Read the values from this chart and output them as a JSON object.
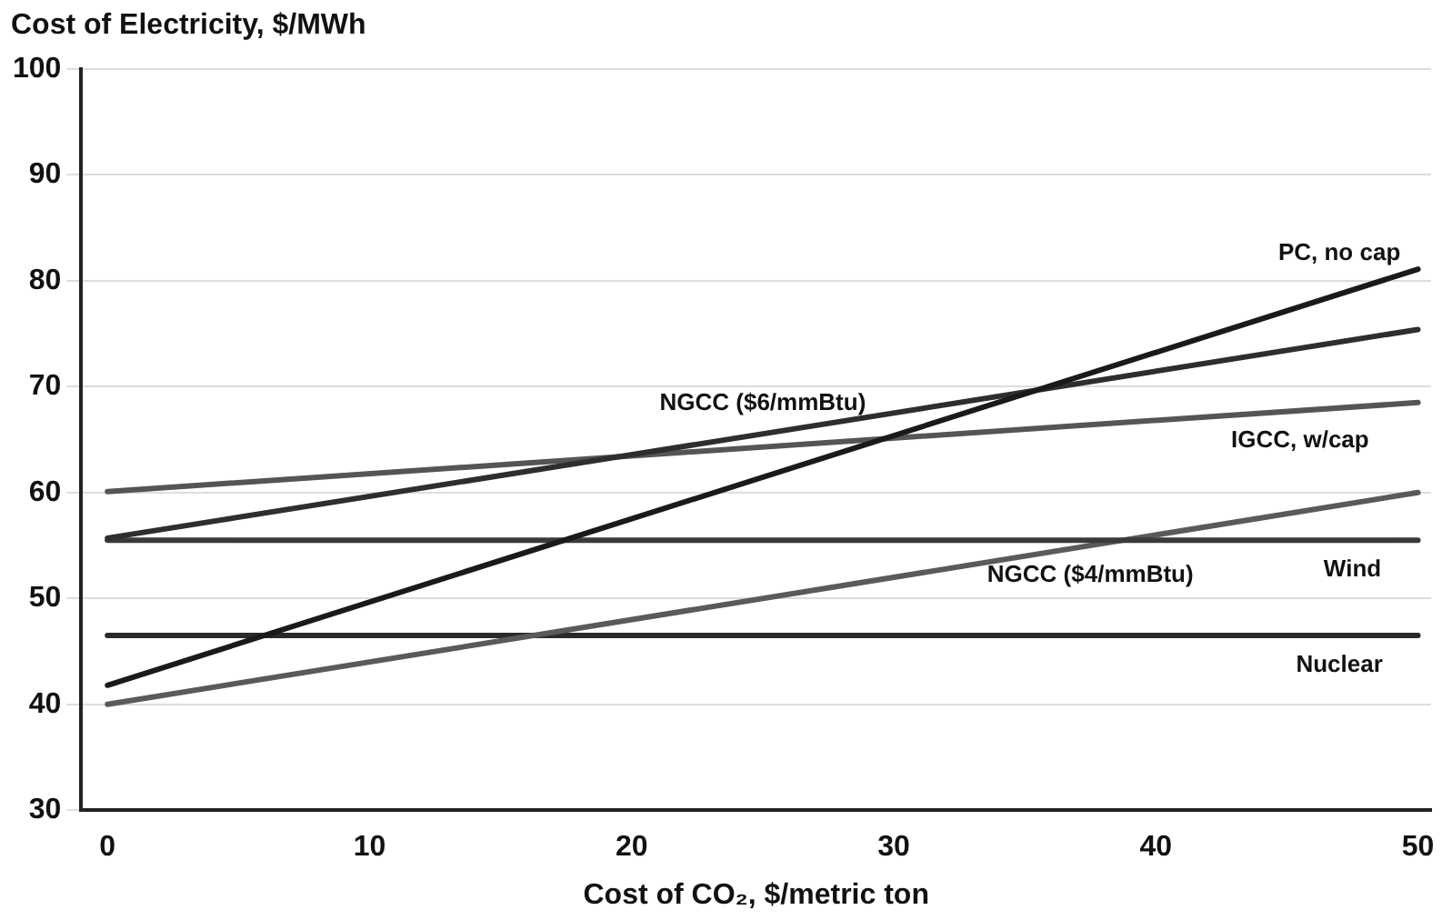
{
  "chart_data": {
    "type": "line",
    "ylabel": "Cost of Electricity, $/MWh",
    "xlabel": "Cost of CO₂, $/metric ton",
    "x": [
      0,
      50
    ],
    "xlim": [
      -1,
      50.5
    ],
    "xticks": [
      0,
      10,
      20,
      30,
      40,
      50
    ],
    "ylim": [
      30,
      100
    ],
    "yticks": [
      30,
      40,
      50,
      60,
      70,
      80,
      90,
      100
    ],
    "grid": "y",
    "legend": false,
    "marker": "none",
    "line_style": "solid",
    "series": [
      {
        "name": "PC, no cap",
        "color": "#1a1a1a",
        "values": [
          41.8,
          81.1
        ]
      },
      {
        "name": "NGCC ($6/mmBtu)",
        "color": "#2e2e2e",
        "values": [
          55.7,
          75.4
        ]
      },
      {
        "name": "IGCC, w/cap",
        "color": "#555555",
        "values": [
          60.1,
          68.5
        ]
      },
      {
        "name": "Wind",
        "color": "#3a3a3a",
        "values": [
          55.5,
          55.5
        ]
      },
      {
        "name": "NGCC ($4/mmBtu)",
        "color": "#5a5a5a",
        "values": [
          40,
          60
        ]
      },
      {
        "name": "Nuclear",
        "color": "#2a2a2a",
        "values": [
          46.5,
          46.5
        ]
      }
    ]
  }
}
